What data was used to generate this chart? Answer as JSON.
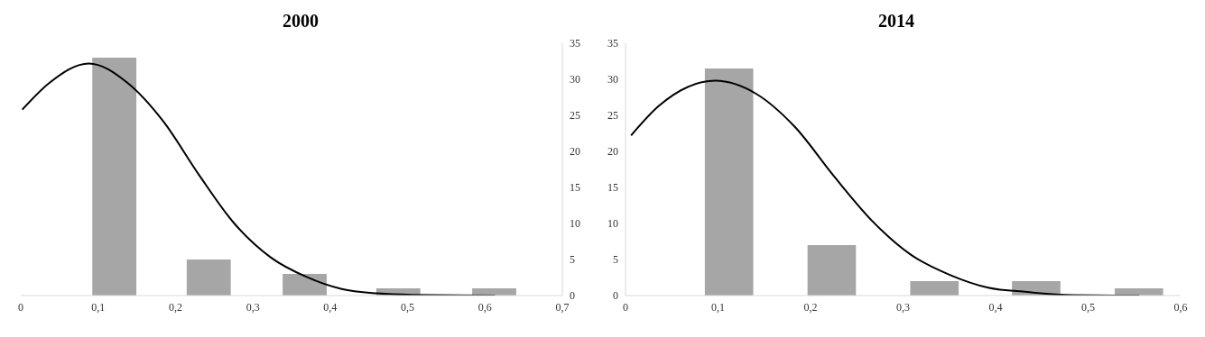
{
  "chart_data": [
    {
      "type": "bar",
      "title": "2000",
      "xlim": [
        0,
        0.7
      ],
      "xticks": [
        0,
        {
          "value": 0.1,
          "label": "0,1"
        },
        {
          "value": 0.2,
          "label": "0,2"
        },
        {
          "value": 0.3,
          "label": "0,3"
        },
        {
          "value": 0.4,
          "label": "0,4"
        },
        {
          "value": 0.5,
          "label": "0,5"
        },
        {
          "value": 0.6,
          "label": "0,6"
        },
        {
          "value": 0.7,
          "label": "0,7"
        }
      ],
      "ylim": [
        0,
        35
      ],
      "yticks": [
        0,
        5,
        10,
        15,
        20,
        25,
        30,
        35
      ],
      "series": [
        {
          "color": "#a6a6a6",
          "x": [
            0.121,
            0.243,
            0.367,
            0.488,
            0.612
          ],
          "values": [
            33,
            5,
            3,
            1,
            1
          ]
        },
        {
          "type": "line",
          "color": "#000000",
          "x": [
            0.002,
            0.037,
            0.088,
            0.138,
            0.184,
            0.23,
            0.276,
            0.323,
            0.369,
            0.415,
            0.461,
            0.507,
            0.613
          ],
          "values": [
            25.8,
            29.5,
            32.2,
            29.5,
            24.2,
            16.8,
            10,
            5.3,
            2.6,
            0.9,
            0.3,
            0.1,
            0
          ]
        }
      ]
    },
    {
      "type": "bar",
      "title": "2014",
      "xlim": [
        0,
        0.6
      ],
      "xticks": [
        0,
        {
          "value": 0.1,
          "label": "0,1"
        },
        {
          "value": 0.2,
          "label": "0,2"
        },
        {
          "value": 0.3,
          "label": "0,3"
        },
        {
          "value": 0.4,
          "label": "0,4"
        },
        {
          "value": 0.5,
          "label": "0,5"
        },
        {
          "value": 0.6,
          "label": "0,6"
        }
      ],
      "ylim": [
        0,
        35
      ],
      "yticks": [
        0,
        5,
        10,
        15,
        20,
        25,
        30,
        35
      ],
      "series": [
        {
          "color": "#a6a6a6",
          "x": [
            0.112,
            0.223,
            0.334,
            0.444,
            0.555
          ],
          "values": [
            31.5,
            7,
            2,
            2,
            1
          ]
        },
        {
          "type": "line",
          "color": "#000000",
          "x": [
            0.006,
            0.036,
            0.097,
            0.141,
            0.183,
            0.225,
            0.267,
            0.308,
            0.35,
            0.392,
            0.434,
            0.476,
            0.555
          ],
          "values": [
            22.2,
            26.3,
            29.8,
            28,
            23.4,
            16.6,
            10.3,
            5.7,
            2.9,
            1.1,
            0.5,
            0.1,
            0
          ]
        }
      ]
    }
  ]
}
